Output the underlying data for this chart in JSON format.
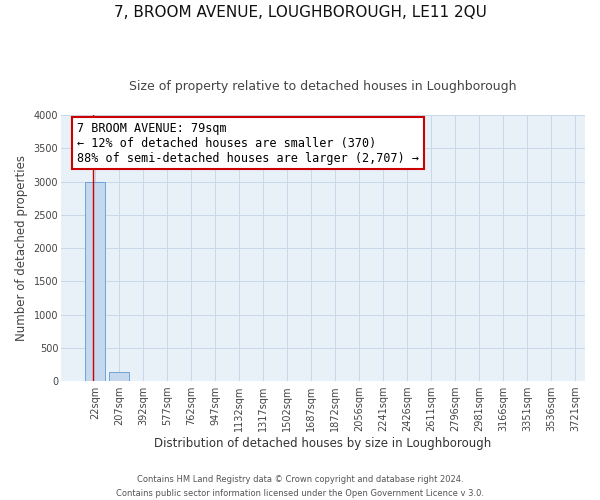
{
  "title_line1": "7, BROOM AVENUE, LOUGHBOROUGH, LE11 2QU",
  "title_line2": "Size of property relative to detached houses in Loughborough",
  "xlabel": "Distribution of detached houses by size in Loughborough",
  "ylabel": "Number of detached properties",
  "bar_values": [
    3000,
    130,
    0,
    0,
    0,
    0,
    0,
    0,
    0,
    0,
    0,
    0,
    0,
    0,
    0,
    0,
    0,
    0,
    0,
    0
  ],
  "bar_labels": [
    "22sqm",
    "207sqm",
    "392sqm",
    "577sqm",
    "762sqm",
    "947sqm",
    "1132sqm",
    "1317sqm",
    "1502sqm",
    "1687sqm",
    "1872sqm",
    "2056sqm",
    "2241sqm",
    "2426sqm",
    "2611sqm",
    "2796sqm",
    "2981sqm",
    "3166sqm",
    "3351sqm",
    "3536sqm",
    "3721sqm"
  ],
  "bar_color": "#c5d8ed",
  "bar_edge_color": "#5b9bd5",
  "annotation_title": "7 BROOM AVENUE: 79sqm",
  "annotation_line1": "← 12% of detached houses are smaller (370)",
  "annotation_line2": "88% of semi-detached houses are larger (2,707) →",
  "annotation_box_facecolor": "#ffffff",
  "annotation_border_color": "#cc0000",
  "red_line_color": "#cc0000",
  "ylim": [
    0,
    4000
  ],
  "yticks": [
    0,
    500,
    1000,
    1500,
    2000,
    2500,
    3000,
    3500,
    4000
  ],
  "grid_color": "#c8d8e8",
  "bg_color": "#e8f0f8",
  "footer_line1": "Contains HM Land Registry data © Crown copyright and database right 2024.",
  "footer_line2": "Contains public sector information licensed under the Open Government Licence v 3.0.",
  "title_fontsize": 11,
  "subtitle_fontsize": 9,
  "tick_fontsize": 7,
  "ylabel_fontsize": 8.5,
  "xlabel_fontsize": 8.5,
  "annotation_fontsize": 8.5
}
